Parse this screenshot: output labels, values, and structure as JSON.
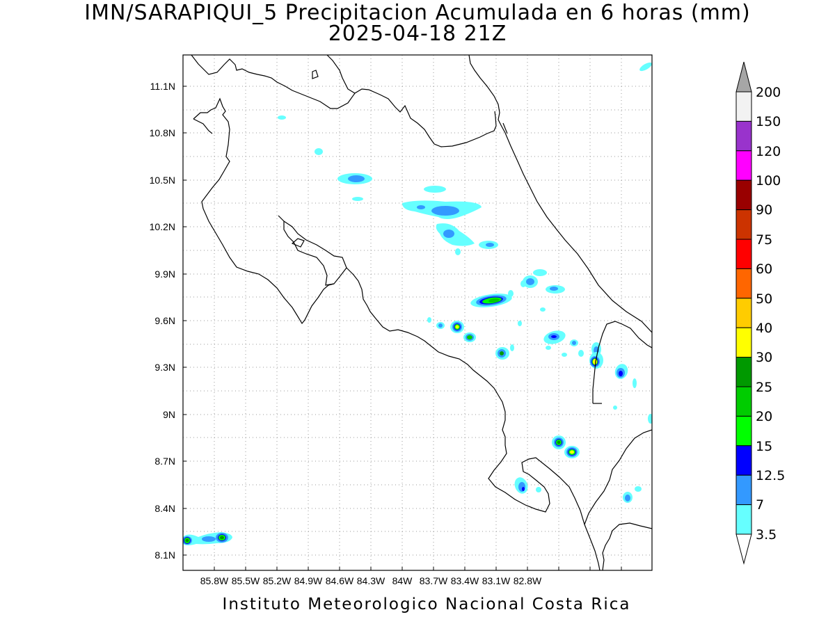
{
  "title": {
    "line1": "IMN/SARAPIQUI_5 Precipitacion Acumulada en 6 horas (mm)",
    "line2": "2025-04-18 21Z"
  },
  "footer": "Instituto Meteorologico Nacional Costa Rica",
  "axes": {
    "x_ticks": [
      "85.8W",
      "85.5W",
      "85.2W",
      "84.9W",
      "84.6W",
      "84.3W",
      "84W",
      "83.7W",
      "83.4W",
      "83.1W",
      "82.8W"
    ],
    "y_ticks": [
      "11.1N",
      "10.8N",
      "10.5N",
      "10.2N",
      "9.9N",
      "9.6N",
      "9.3N",
      "9N",
      "8.7N",
      "8.4N",
      "8.1N"
    ]
  },
  "colorbar": {
    "labels": [
      "200",
      "150",
      "120",
      "100",
      "90",
      "75",
      "60",
      "50",
      "40",
      "30",
      "25",
      "20",
      "15",
      "12.5",
      "7",
      "3.5"
    ],
    "colors": [
      "#f2f2f2",
      "#9933cc",
      "#ff00ff",
      "#990000",
      "#cc3300",
      "#ff0000",
      "#ff6600",
      "#ffcc00",
      "#ffff00",
      "#009900",
      "#00cc00",
      "#00ff00",
      "#0000ff",
      "#3399ff",
      "#66ffff"
    ],
    "over_color": "#a6a6a6",
    "under_color": "#ffffff"
  },
  "colors": {
    "coastline": "#000000",
    "grid": "#999999",
    "light_cyan": "#66ffff",
    "light_blue": "#3399ff",
    "blue": "#0000ff",
    "bright_green": "#00ff00",
    "green": "#00cc00",
    "dark_green": "#009900",
    "yellow": "#ffff00"
  }
}
